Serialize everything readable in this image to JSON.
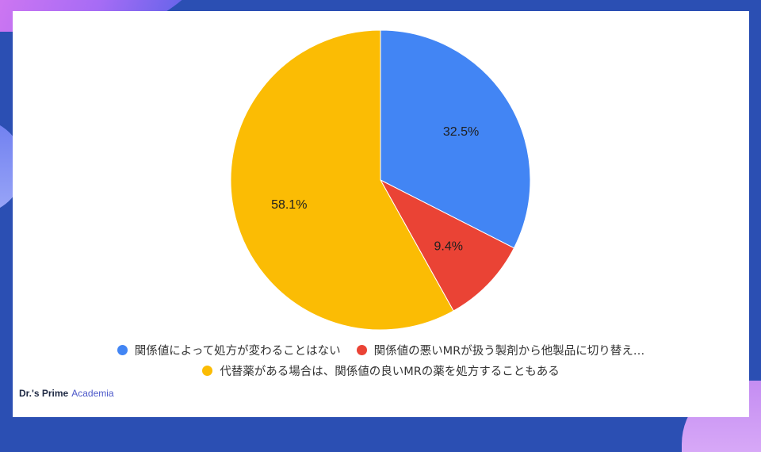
{
  "colors": {
    "blue": "#4285f4",
    "red": "#ea4335",
    "yellow": "#fbbc04"
  },
  "chart_data": {
    "type": "pie",
    "slices": [
      {
        "label": "関係値によって処方が変わることはない",
        "value": 32.5,
        "display": "32.5%",
        "color": "#4285f4"
      },
      {
        "label": "関係値の悪いMRが扱う製剤から他製品に切り替え…",
        "value": 9.4,
        "display": "9.4%",
        "color": "#ea4335"
      },
      {
        "label": "代替薬がある場合は、関係値の良いMRの薬を処方することもある",
        "value": 58.1,
        "display": "58.1%",
        "color": "#fbbc04"
      }
    ],
    "legend_position": "bottom"
  },
  "branding": {
    "name": "Dr.'s Prime",
    "suffix": "Academia"
  }
}
